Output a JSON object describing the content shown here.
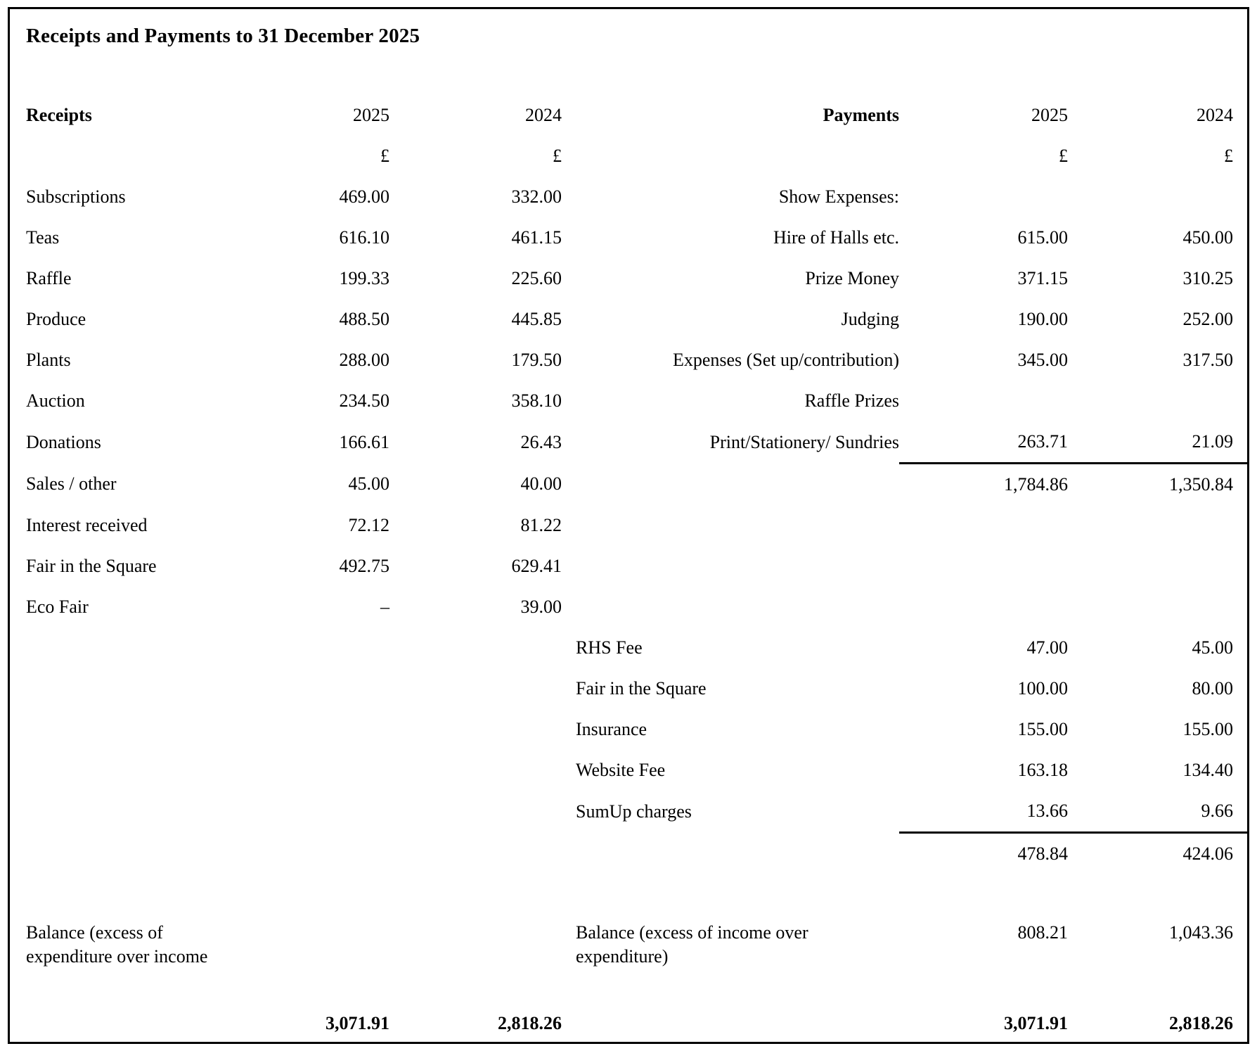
{
  "title": "Receipts and Payments to 31 December 2025",
  "columns": {
    "receipts_header": "Receipts",
    "payments_header": "Payments",
    "year_2025": "2025",
    "year_2024": "2024",
    "currency": "£"
  },
  "grid": {
    "rows": [
      {
        "name": "row-subscriptions-show-expenses",
        "kind": "",
        "r_label": "Subscriptions",
        "r25": "469.00",
        "r24": "332.00",
        "p_label": "Show Expenses:",
        "p25": "",
        "p24": ""
      },
      {
        "name": "row-teas-hire-of-halls",
        "kind": "",
        "r_label": "Teas",
        "r25": "616.10",
        "r24": "461.15",
        "p_label": "Hire of Halls etc.",
        "p25": "615.00",
        "p24": "450.00"
      },
      {
        "name": "row-raffle-prize-money",
        "kind": "",
        "r_label": "Raffle",
        "r25": "199.33",
        "r24": "225.60",
        "p_label": "Prize Money",
        "p25": "371.15",
        "p24": "310.25"
      },
      {
        "name": "row-produce-judging",
        "kind": "",
        "r_label": "Produce",
        "r25": "488.50",
        "r24": "445.85",
        "p_label": "Judging",
        "p25": "190.00",
        "p24": "252.00"
      },
      {
        "name": "row-plants-setup-expenses",
        "kind": "",
        "r_label": "Plants",
        "r25": "288.00",
        "r24": "179.50",
        "p_label": "Expenses (Set up/contribution)",
        "p25": "345.00",
        "p24": "317.50"
      },
      {
        "name": "row-auction-raffle-prizes",
        "kind": "",
        "r_label": "Auction",
        "r25": "234.50",
        "r24": "358.10",
        "p_label": "Raffle Prizes",
        "p25": "",
        "p24": ""
      },
      {
        "name": "row-donations-print-stationery",
        "kind": "rule",
        "r_label": "Donations",
        "r25": "166.61",
        "r24": "26.43",
        "p_label": "Print/Stationery/ Sundries",
        "p25": "263.71",
        "p24": "21.09"
      },
      {
        "name": "row-sales-other-show-subtotal",
        "kind": "",
        "r_label": "Sales / other",
        "r25": "45.00",
        "r24": "40.00",
        "p_label": "",
        "p25": "1,784.86",
        "p24": "1,350.84"
      },
      {
        "name": "row-interest-received",
        "kind": "",
        "r_label": "Interest received",
        "r25": "72.12",
        "r24": "81.22",
        "p_label": "",
        "p25": "",
        "p24": ""
      },
      {
        "name": "row-fair-in-the-square-receipts",
        "kind": "",
        "r_label": "Fair in the Square",
        "r25": "492.75",
        "r24": "629.41",
        "p_label": "",
        "p25": "",
        "p24": ""
      },
      {
        "name": "row-eco-fair",
        "kind": "",
        "r_label": "Eco Fair",
        "r25": "–",
        "r24": "39.00",
        "p_label": "",
        "p25": "",
        "p24": ""
      },
      {
        "name": "row-rhs-fee",
        "kind": "pleft",
        "r_label": "",
        "r25": "",
        "r24": "",
        "p_label": "RHS Fee",
        "p25": "47.00",
        "p24": "45.00"
      },
      {
        "name": "row-fair-in-the-square-payments",
        "kind": "pleft",
        "r_label": "",
        "r25": "",
        "r24": "",
        "p_label": "Fair in the Square",
        "p25": "100.00",
        "p24": "80.00"
      },
      {
        "name": "row-insurance",
        "kind": "pleft",
        "r_label": "",
        "r25": "",
        "r24": "",
        "p_label": "Insurance",
        "p25": "155.00",
        "p24": "155.00"
      },
      {
        "name": "row-website-fee",
        "kind": "pleft",
        "r_label": "",
        "r25": "",
        "r24": "",
        "p_label": "Website Fee",
        "p25": "163.18",
        "p24": "134.40"
      },
      {
        "name": "row-sumup-charges",
        "kind": "pleft rule",
        "r_label": "",
        "r25": "",
        "r24": "",
        "p_label": "SumUp charges",
        "p25": "13.66",
        "p24": "9.66"
      },
      {
        "name": "row-other-payments-subtotal",
        "kind": "",
        "r_label": "",
        "r25": "",
        "r24": "",
        "p_label": "",
        "p25": "478.84",
        "p24": "424.06"
      },
      {
        "name": "row-spacer",
        "kind": "spacer",
        "r_label": "",
        "r25": "",
        "r24": "",
        "p_label": "",
        "p25": "",
        "p24": ""
      },
      {
        "name": "row-balance",
        "kind": "balance pleft",
        "r_label": "Balance (excess of expenditure over income",
        "r25": "",
        "r24": "",
        "p_label": "Balance (excess of income over expenditure)",
        "p25": "808.21",
        "p24": "1,043.36"
      },
      {
        "name": "row-totals",
        "kind": "totals",
        "r_label": "",
        "r25": "3,071.91",
        "r24": "2,818.26",
        "p_label": "",
        "p25": "3,071.91",
        "p24": "2,818.26"
      }
    ]
  }
}
